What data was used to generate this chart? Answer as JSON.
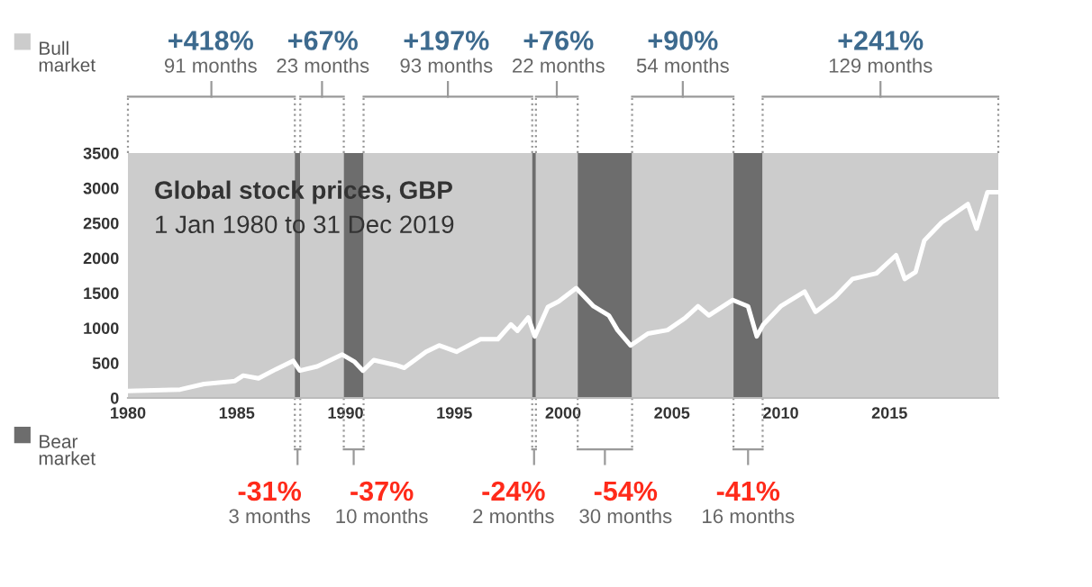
{
  "chart_data": {
    "type": "line",
    "title": "Global stock prices, GBP",
    "subtitle": "1 Jan 1980 to 31 Dec 2019",
    "annotations": [
      "Bull market",
      "Bear market"
    ],
    "x": [
      1980.0,
      1982.4,
      1983.5,
      1984.9,
      1985.3,
      1986.0,
      1986.8,
      1987.6,
      1987.9,
      1988.7,
      1989.85,
      1990.4,
      1990.8,
      1991.3,
      1992.3,
      1992.7,
      1993.7,
      1994.3,
      1995.1,
      1996.2,
      1997.0,
      1997.6,
      1997.9,
      1998.4,
      1998.7,
      1999.3,
      1999.8,
      2000.6,
      2001.4,
      2002.1,
      2002.5,
      2003.1,
      2003.9,
      2004.8,
      2005.6,
      2006.2,
      2006.7,
      2007.8,
      2008.5,
      2008.9,
      2009.2,
      2010.0,
      2011.1,
      2011.6,
      2012.5,
      2013.3,
      2014.4,
      2015.3,
      2015.7,
      2016.2,
      2016.6,
      2017.4,
      2018.6,
      2019.0,
      2019.5,
      2019.9
    ],
    "series": [
      {
        "color": "#ffffff",
        "values": [
          100,
          120,
          200,
          240,
          320,
          280,
          410,
          530,
          390,
          450,
          620,
          520,
          390,
          540,
          470,
          430,
          660,
          750,
          660,
          840,
          840,
          1050,
          960,
          1150,
          880,
          1300,
          1380,
          1570,
          1310,
          1180,
          970,
          750,
          920,
          970,
          1140,
          1310,
          1180,
          1400,
          1310,
          880,
          1050,
          1310,
          1520,
          1230,
          1440,
          1700,
          1780,
          2040,
          1700,
          1800,
          2250,
          2510,
          2770,
          2420,
          2940,
          2940
        ]
      }
    ],
    "xlim": [
      1980,
      2020
    ],
    "ylim": [
      0,
      3500
    ],
    "xticks": [
      1980,
      1985,
      1990,
      1995,
      2000,
      2005,
      2010,
      2015
    ],
    "yticks": [
      0,
      500,
      1000,
      1500,
      2000,
      2500,
      3000,
      3500
    ],
    "grid": false,
    "marker": "none",
    "line_style": "solid",
    "bands": [
      {
        "axis": "x",
        "from": 1980.0,
        "to": 1987.67,
        "label": "+418%\n91 months",
        "color": "#cccccc"
      },
      {
        "axis": "x",
        "from": 1987.67,
        "to": 1987.92,
        "label": "-31%\n3 months",
        "color": "#6d6d6d"
      },
      {
        "axis": "x",
        "from": 1987.92,
        "to": 1989.92,
        "label": "+67%\n23 months",
        "color": "#cccccc"
      },
      {
        "axis": "x",
        "from": 1989.92,
        "to": 1990.83,
        "label": "-37%\n10 months",
        "color": "#6d6d6d"
      },
      {
        "axis": "x",
        "from": 1990.83,
        "to": 1998.58,
        "label": "+197%\n93 months",
        "color": "#cccccc"
      },
      {
        "axis": "x",
        "from": 1998.58,
        "to": 1998.75,
        "label": "-24%\n2 months",
        "color": "#6d6d6d"
      },
      {
        "axis": "x",
        "from": 1998.75,
        "to": 2000.67,
        "label": "+76%\n22 months",
        "color": "#cccccc"
      },
      {
        "axis": "x",
        "from": 2000.67,
        "to": 2003.17,
        "label": "-54%\n30 months",
        "color": "#6d6d6d"
      },
      {
        "axis": "x",
        "from": 2003.17,
        "to": 2007.83,
        "label": "+90%\n54 months",
        "color": "#cccccc"
      },
      {
        "axis": "x",
        "from": 2007.83,
        "to": 2009.17,
        "label": "-41%\n16 months",
        "color": "#6d6d6d"
      },
      {
        "axis": "x",
        "from": 2009.17,
        "to": 2020.0,
        "label": "+241%\n129 months",
        "color": "#cccccc"
      }
    ]
  }
}
